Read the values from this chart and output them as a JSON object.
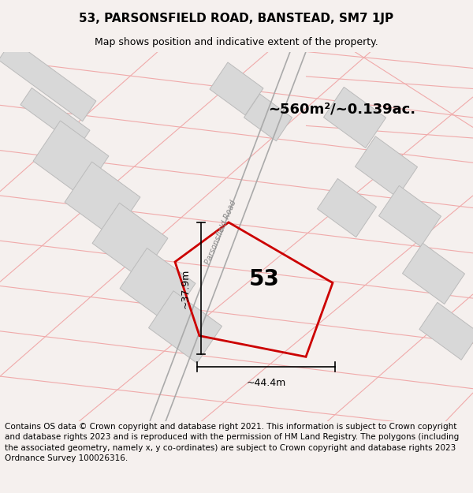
{
  "title": "53, PARSONSFIELD ROAD, BANSTEAD, SM7 1JP",
  "subtitle": "Map shows position and indicative extent of the property.",
  "area_text": "~560m²/~0.139ac.",
  "number_label": "53",
  "dim_width": "~44.4m",
  "dim_height": "~37.9m",
  "road_label": "Parsonsfield Road",
  "footer_text": "Contains OS data © Crown copyright and database right 2021. This information is subject to Crown copyright and database rights 2023 and is reproduced with the permission of HM Land Registry. The polygons (including the associated geometry, namely x, y co-ordinates) are subject to Crown copyright and database rights 2023 Ordnance Survey 100026316.",
  "bg_color": "#f5f0ee",
  "map_bg": "#ffffff",
  "plot_color": "#cc0000",
  "building_fill": "#d8d8d8",
  "road_line_color": "#f0aaaa",
  "parcel_line_color": "#f0aaaa",
  "title_fontsize": 11,
  "subtitle_fontsize": 9,
  "footer_fontsize": 7.5
}
